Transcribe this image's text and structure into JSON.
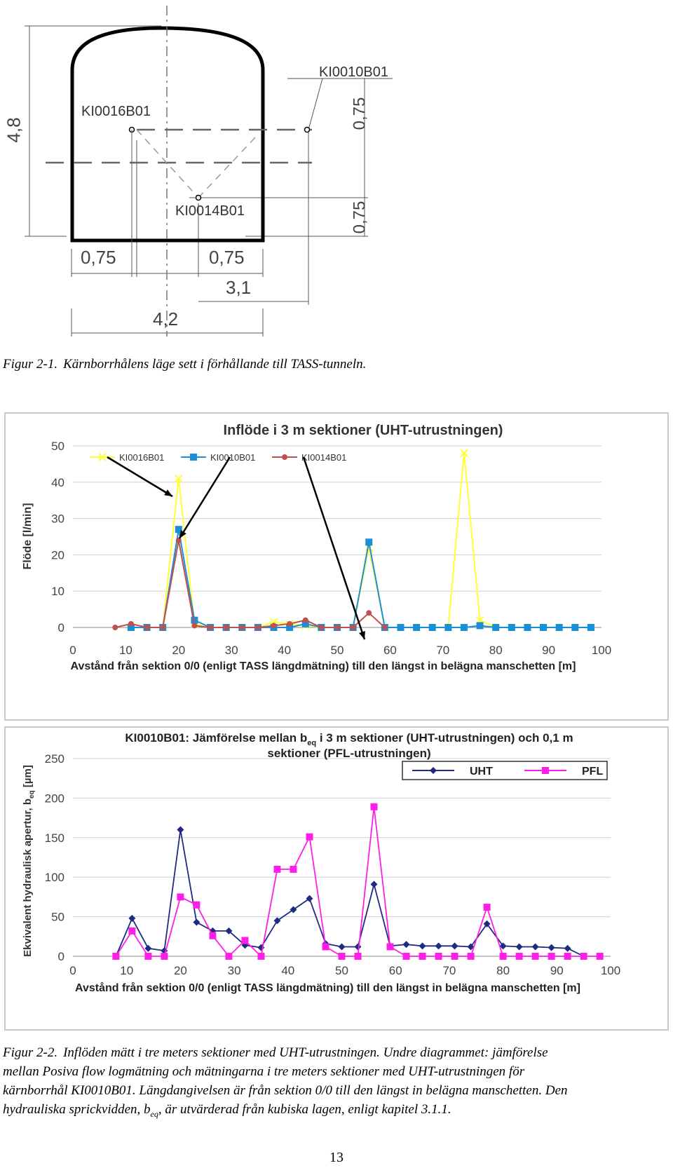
{
  "figure1": {
    "labels": {
      "height": "4,8",
      "width": "4,2",
      "d_left": "0,75",
      "d_mid": "0,75",
      "d_right": "3,1",
      "v_top": "0,75",
      "v_bottom": "0,75",
      "hole_a": "KI0016B01",
      "hole_b": "KI0014B01",
      "hole_c": "KI0010B01"
    },
    "caption_label": "Figur 2-1.",
    "caption_text": "Kärnborrhålens läge sett i förhållande till TASS-tunneln."
  },
  "chart_data": [
    {
      "type": "line",
      "title": "Inflöde i 3 m sektioner (UHT-utrustningen)",
      "xlabel": "Avstånd från sektion 0/0 (enligt TASS längdmätning) till den längst in belägna manschetten [m]",
      "ylabel": "Flöde [l/min]",
      "xlim": [
        0,
        100
      ],
      "ylim": [
        0,
        50
      ],
      "xticks": [
        "0",
        "10",
        "20",
        "30",
        "40",
        "50",
        "60",
        "70",
        "80",
        "90",
        "100"
      ],
      "yticks": [
        "0",
        "10",
        "20",
        "30",
        "40",
        "50"
      ],
      "legend": "top-left",
      "series": [
        {
          "name": "KI0016B01",
          "color": "#ffff33",
          "marker": "x",
          "x": [
            11,
            14,
            17,
            20,
            23,
            26,
            29,
            32,
            35,
            38,
            41,
            44,
            47,
            50,
            53,
            56,
            59,
            62,
            65,
            68,
            71,
            74,
            77,
            80,
            83,
            86,
            89,
            92,
            95,
            98
          ],
          "y": [
            0,
            0,
            0,
            41,
            1,
            0,
            0,
            0,
            0,
            1.5,
            1,
            0.5,
            0,
            0,
            0,
            22,
            0,
            0,
            0,
            0,
            0,
            48,
            2,
            0,
            0,
            0,
            0,
            0,
            0,
            0
          ]
        },
        {
          "name": "KI0010B01",
          "color": "#1a8fd8",
          "marker": "square",
          "x": [
            11,
            14,
            17,
            20,
            23,
            26,
            29,
            32,
            35,
            38,
            41,
            44,
            47,
            50,
            53,
            56,
            59,
            62,
            65,
            68,
            71,
            74,
            77,
            80,
            83,
            86,
            89,
            92,
            95,
            98
          ],
          "y": [
            0,
            0,
            0,
            27,
            2,
            0,
            0,
            0,
            0,
            0,
            0,
            1,
            0,
            0,
            0,
            23.5,
            0,
            0,
            0,
            0,
            0,
            0,
            0.5,
            0,
            0,
            0,
            0,
            0,
            0,
            0
          ]
        },
        {
          "name": "KI0014B01",
          "color": "#c0504d",
          "marker": "dot",
          "x": [
            8,
            11,
            14,
            17,
            20,
            23,
            26,
            29,
            32,
            35,
            38,
            41,
            44,
            47,
            50,
            53,
            56,
            59
          ],
          "y": [
            0,
            1,
            0,
            0,
            24,
            0.5,
            0,
            0,
            0,
            0,
            0.5,
            1,
            2,
            0,
            0,
            0,
            4,
            0
          ]
        }
      ]
    },
    {
      "type": "line",
      "title_parts": [
        "KI0010B01: Jämförelse mellan b",
        "eq",
        " i 3 m sektioner (UHT-utrustningen) och 0,1 m",
        "sektioner (PFL-utrustningen)"
      ],
      "xlabel": "Avstånd från sektion 0/0 (enligt TASS längdmätning) till den längst in belägna manschetten [m]",
      "ylabel_parts": [
        "Ekvivalent hydraulisk apertur, b",
        "eq",
        " [µm]"
      ],
      "xlim": [
        0,
        100
      ],
      "ylim": [
        0,
        250
      ],
      "xticks": [
        "0",
        "10",
        "20",
        "30",
        "40",
        "50",
        "60",
        "70",
        "80",
        "90",
        "100"
      ],
      "yticks": [
        "0",
        "50",
        "100",
        "150",
        "200",
        "250"
      ],
      "legend": "top-right",
      "series": [
        {
          "name": "UHT",
          "color": "#1f2a80",
          "marker": "diamond",
          "x": [
            8,
            11,
            14,
            17,
            20,
            23,
            26,
            29,
            32,
            35,
            38,
            41,
            44,
            47,
            50,
            53,
            56,
            59,
            62,
            65,
            68,
            71,
            74,
            77,
            80,
            83,
            86,
            89,
            92,
            95
          ],
          "y": [
            0,
            48,
            10,
            7,
            160,
            43,
            32,
            32,
            14,
            11,
            45,
            59,
            73,
            16,
            12,
            12,
            91,
            13,
            15,
            13,
            13,
            13,
            12,
            41,
            13,
            12,
            12,
            11,
            10,
            0
          ]
        },
        {
          "name": "PFL",
          "color": "#ff1ee8",
          "marker": "square",
          "x": [
            8,
            11,
            14,
            17,
            20,
            23,
            26,
            29,
            32,
            35,
            38,
            41,
            44,
            47,
            50,
            53,
            56,
            59,
            62,
            65,
            68,
            71,
            74,
            77,
            80,
            83,
            86,
            89,
            92,
            95,
            98
          ],
          "y": [
            0,
            32,
            0,
            0,
            75,
            65,
            26,
            0,
            20,
            0,
            110,
            110,
            151,
            12,
            0,
            0,
            189,
            12,
            0,
            0,
            0,
            0,
            0,
            62,
            0,
            0,
            0,
            0,
            0,
            0,
            0
          ]
        }
      ]
    }
  ],
  "figure2": {
    "caption_label": "Figur 2-2.",
    "caption_lines": [
      "Inflöden mätt i tre meters sektioner med UHT-utrustningen. Undre diagrammet: jämförelse",
      "mellan Posiva flow logmätning och mätningarna i tre meters sektioner med UHT-utrustningen för",
      "kärnborrhål KI0010B01. Längdangivelsen är från sektion 0/0 till den längst in belägna manschetten. Den"
    ],
    "caption_last_a": "hydrauliska sprickvidden, b",
    "caption_last_sub": "eq",
    "caption_last_b": ", är utvärderad från kubiska lagen, enligt kapitel 3.1.1."
  },
  "page_number": "13"
}
